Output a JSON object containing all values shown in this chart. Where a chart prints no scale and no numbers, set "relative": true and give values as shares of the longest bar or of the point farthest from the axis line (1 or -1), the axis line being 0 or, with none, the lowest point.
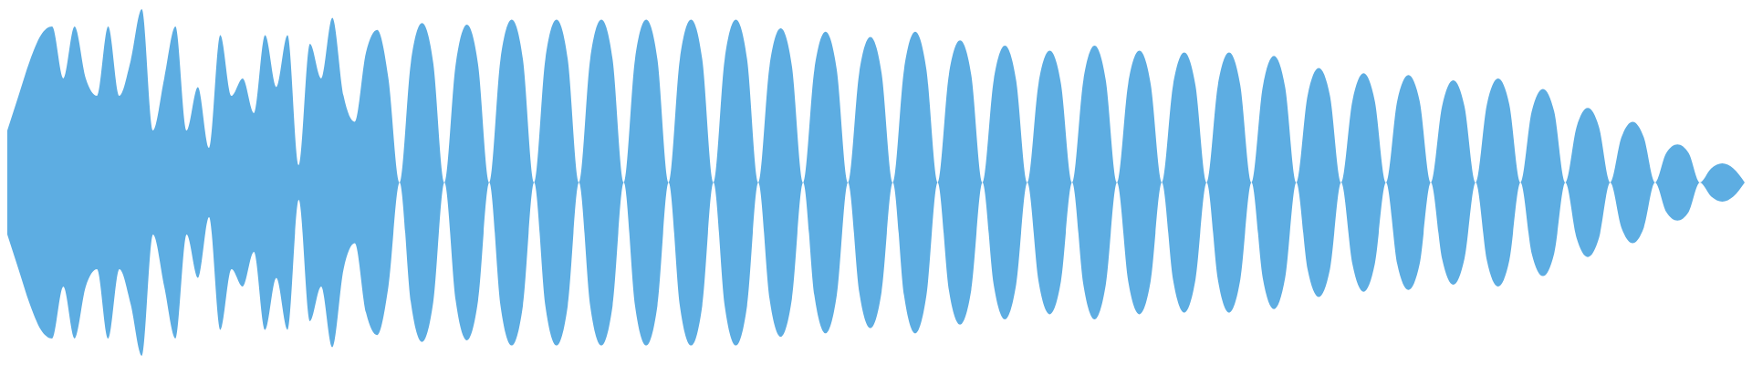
{
  "chart_data": {
    "type": "area",
    "relative": true,
    "categories": [
      null,
      null,
      null,
      null,
      null,
      null,
      null,
      null,
      null,
      null,
      null,
      null,
      null,
      null,
      null,
      null,
      null,
      null,
      null,
      null,
      null,
      null,
      null,
      null,
      null,
      null,
      null,
      null,
      null,
      null,
      null,
      null,
      null,
      null,
      null,
      null,
      null,
      null,
      null,
      null,
      null,
      null,
      null,
      null,
      null,
      null,
      null,
      null,
      null,
      null,
      null,
      null,
      null,
      null,
      null,
      null,
      null,
      null,
      null,
      null,
      null,
      null,
      null,
      null,
      null,
      null,
      null,
      null,
      null,
      null,
      null,
      null,
      null,
      null,
      null,
      null,
      null,
      null,
      null,
      null,
      null,
      null,
      null,
      null,
      null,
      null,
      null,
      null,
      null,
      null,
      null,
      null,
      null,
      null,
      null,
      null,
      null,
      null,
      null,
      null,
      null,
      null,
      null,
      null,
      null,
      null,
      null,
      null,
      null,
      null,
      null,
      null,
      null,
      null,
      null,
      null,
      null,
      null,
      null,
      null,
      null,
      null,
      null,
      null,
      null,
      null,
      null,
      null,
      null,
      null,
      null,
      null,
      null,
      null,
      null,
      null,
      null,
      null,
      null,
      null,
      null,
      null,
      null,
      null,
      null,
      null,
      null,
      null,
      null,
      null,
      null,
      null,
      null,
      null,
      null,
      null
    ],
    "series": [
      {
        "color": "#5dade2",
        "values": [
          0.3,
          0.5,
          0.7,
          0.85,
          0.9,
          0.6,
          0.9,
          0.6,
          0.5,
          0.9,
          0.5,
          0.7,
          1,
          0.3,
          0.6,
          0.9,
          0.3,
          0.55,
          0.2,
          0.85,
          0.5,
          0.6,
          0.4,
          0.85,
          0.55,
          0.85,
          0.1,
          0.8,
          0.6,
          0.95,
          0.5,
          0.35,
          0.75,
          0.88,
          0.6,
          0,
          0.69,
          0.92,
          0.69,
          0,
          0.68,
          0.91,
          0.68,
          0,
          0.71,
          0.94,
          0.71,
          0,
          0.71,
          0.94,
          0.71,
          0,
          0.71,
          0.94,
          0.71,
          0,
          0.71,
          0.94,
          0.71,
          0,
          0.71,
          0.94,
          0.71,
          0,
          0.71,
          0.94,
          0.71,
          0,
          0.67,
          0.89,
          0.67,
          0,
          0.65,
          0.87,
          0.65,
          0,
          0.63,
          0.84,
          0.63,
          0,
          0.65,
          0.87,
          0.65,
          0,
          0.62,
          0.82,
          0.62,
          0,
          0.59,
          0.79,
          0.59,
          0,
          0.57,
          0.76,
          0.57,
          0,
          0.59,
          0.79,
          0.59,
          0,
          0.57,
          0.76,
          0.57,
          0,
          0.56,
          0.75,
          0.56,
          0,
          0.56,
          0.75,
          0.56,
          0,
          0.55,
          0.73,
          0.55,
          0,
          0.5,
          0.66,
          0.5,
          0,
          0.47,
          0.63,
          0.47,
          0,
          0.47,
          0.62,
          0.47,
          0,
          0.44,
          0.59,
          0.44,
          0,
          0.45,
          0.6,
          0.45,
          0,
          0.41,
          0.54,
          0.41,
          0,
          0.32,
          0.43,
          0.32,
          0,
          0.26,
          0.35,
          0.26,
          0,
          0.17,
          0.22,
          0.17,
          0,
          0.08,
          0.11,
          0.08,
          0
        ]
      }
    ]
  }
}
